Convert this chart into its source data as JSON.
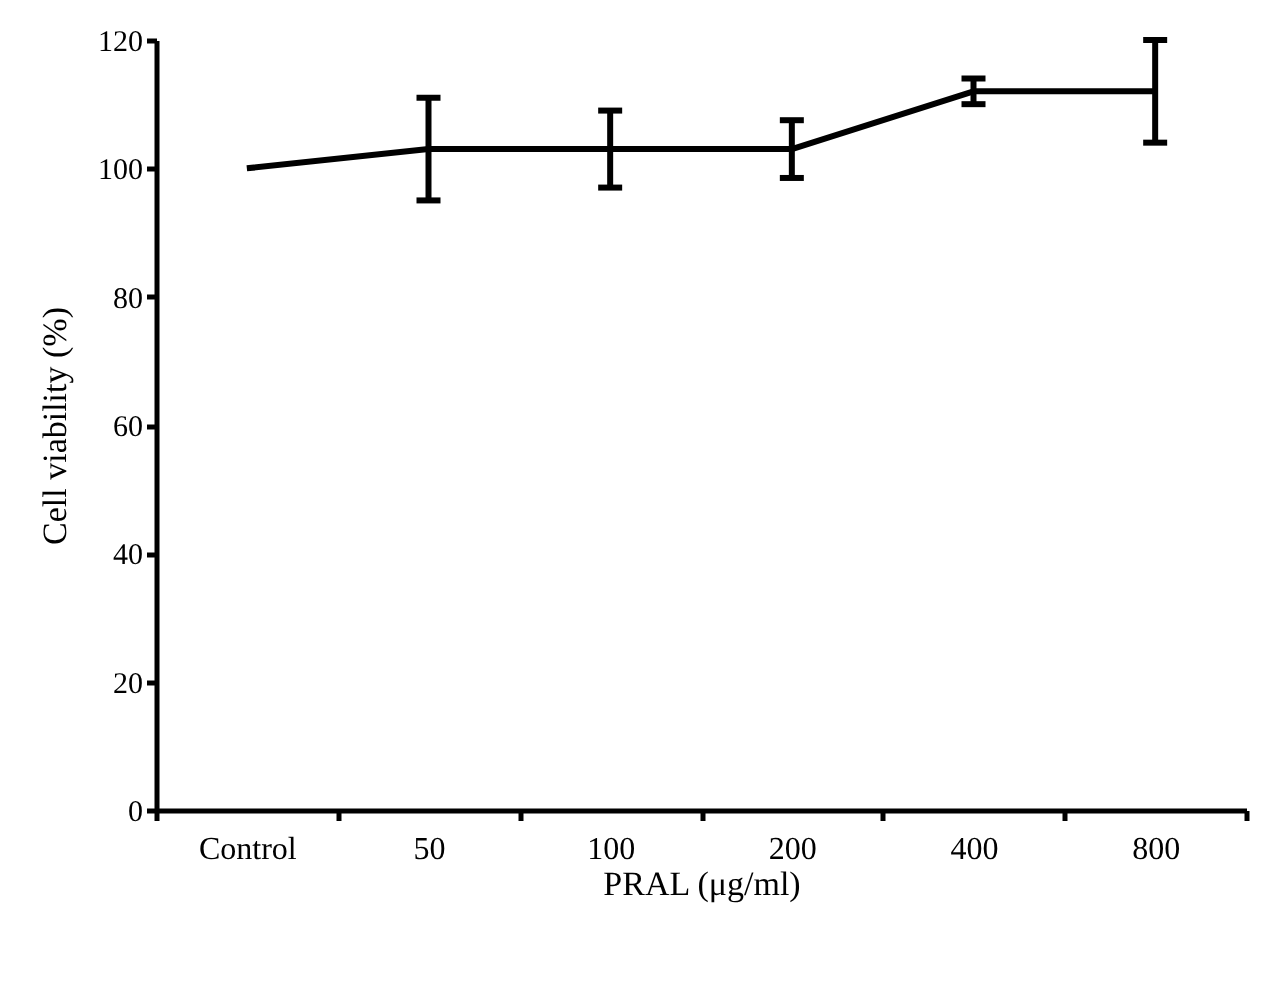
{
  "chart_data": {
    "type": "line",
    "xlabel": "PRAL (μg/ml)",
    "ylabel": "Cell viability (%)",
    "categories": [
      "Control",
      "50",
      "100",
      "200",
      "400",
      "800"
    ],
    "series": [
      {
        "color": "#000000",
        "values": [
          100,
          103,
          103,
          103,
          112,
          112
        ],
        "errors": [
          null,
          8,
          6,
          4.5,
          2,
          8
        ]
      }
    ],
    "ylim": [
      0,
      120
    ],
    "yticks": [
      0,
      20,
      40,
      60,
      80,
      100,
      120
    ],
    "grid": false,
    "marker": "none",
    "line_style": "solid"
  }
}
